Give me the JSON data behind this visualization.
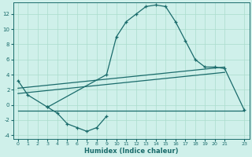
{
  "xlabel": "Humidex (Indice chaleur)",
  "background_color": "#cff0ea",
  "line_color": "#1a6b6b",
  "grid_color": "#aaddcc",
  "xlim": [
    -0.5,
    23.5
  ],
  "ylim": [
    -4.5,
    13.5
  ],
  "xticks": [
    0,
    1,
    2,
    3,
    4,
    5,
    6,
    7,
    8,
    9,
    10,
    11,
    12,
    13,
    14,
    15,
    16,
    17,
    18,
    19,
    20,
    21,
    23
  ],
  "yticks": [
    -4,
    -2,
    0,
    2,
    4,
    6,
    8,
    10,
    12
  ],
  "curve1_x": [
    0,
    1,
    3,
    9,
    10,
    11,
    12,
    13,
    14,
    15,
    16,
    17,
    18,
    19,
    20,
    21,
    23
  ],
  "curve1_y": [
    3.2,
    1.3,
    -0.3,
    4.0,
    9.0,
    11.0,
    12.0,
    13.0,
    13.2,
    13.0,
    11.0,
    8.5,
    6.0,
    5.0,
    5.0,
    4.8,
    -0.7
  ],
  "curve2_x": [
    3,
    4,
    5,
    6,
    7,
    8,
    9
  ],
  "curve2_y": [
    -0.3,
    -1.1,
    -2.5,
    -3.0,
    -3.5,
    -3.0,
    -1.5
  ],
  "line1_x": [
    0,
    21
  ],
  "line1_y": [
    2.2,
    5.0
  ],
  "line2_x": [
    0,
    21
  ],
  "line2_y": [
    1.5,
    4.3
  ],
  "line3_x": [
    0,
    14,
    23
  ],
  "line3_y": [
    -0.8,
    -0.8,
    -0.8
  ]
}
